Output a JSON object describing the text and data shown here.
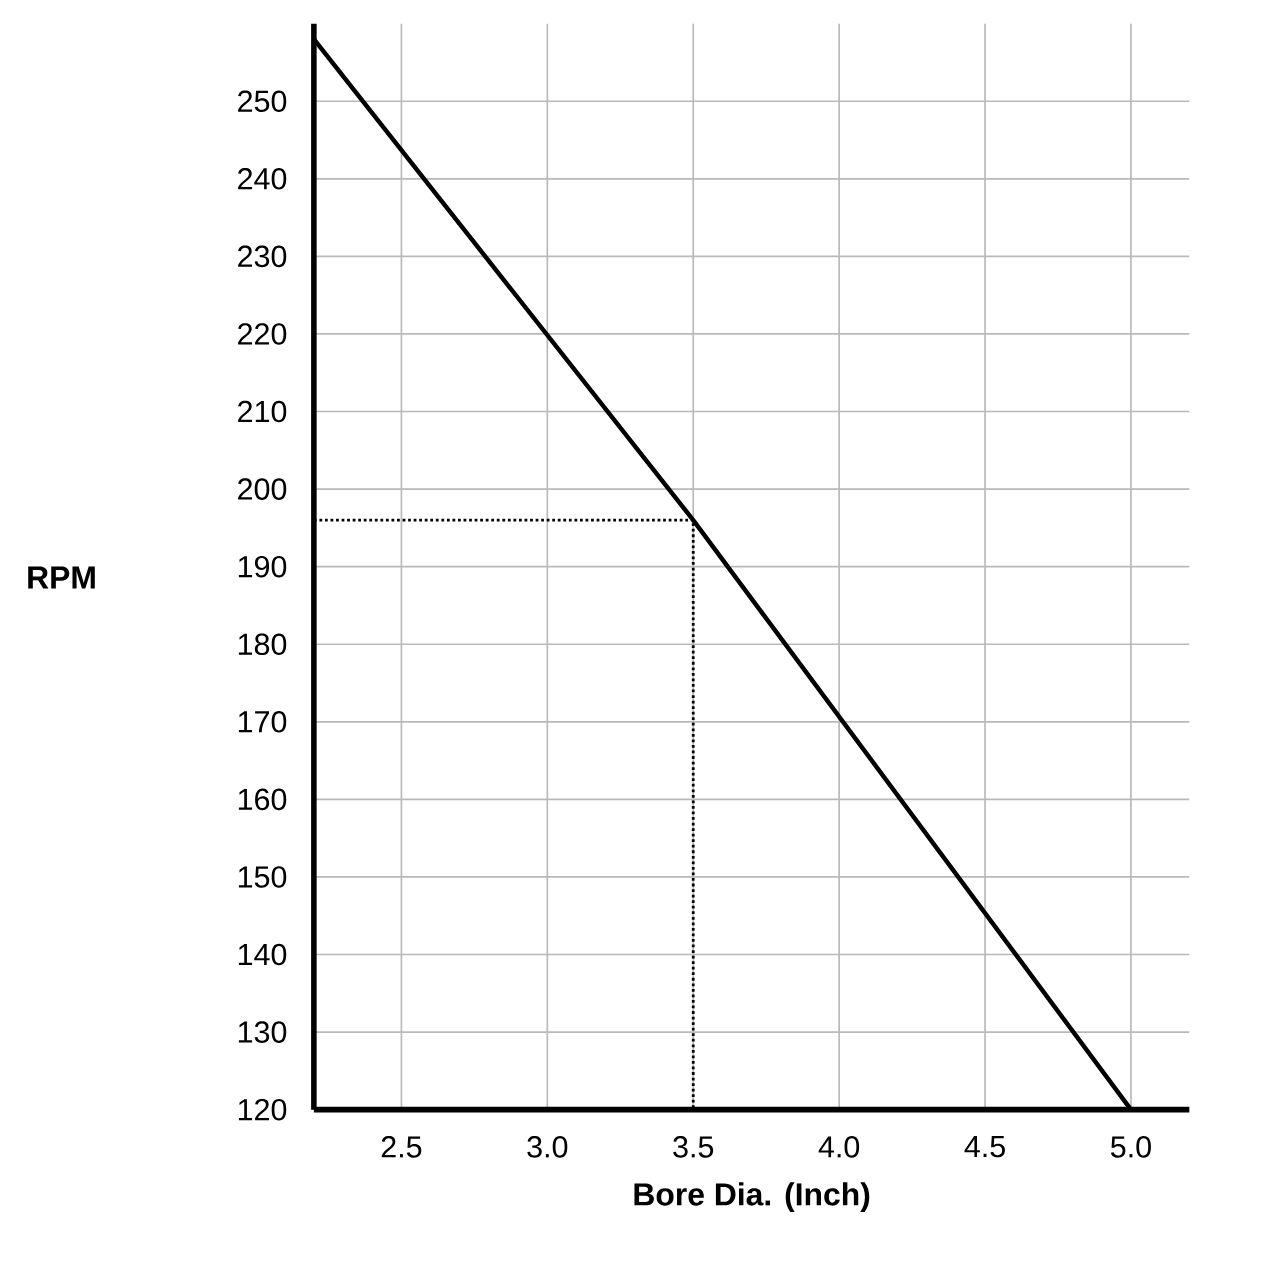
{
  "chart_data": {
    "type": "line",
    "xlabel": "Bore Dia. (Inch)",
    "ylabel": "RPM",
    "xlim": [
      2.2,
      5.2
    ],
    "xticks": [
      {
        "value": 2.5,
        "label": "2.5"
      },
      {
        "value": 3.0,
        "label": "3.0"
      },
      {
        "value": 3.5,
        "label": "3.5"
      },
      {
        "value": 4.0,
        "label": "4.0"
      },
      {
        "value": 4.5,
        "label": "4.5"
      },
      {
        "value": 5.0,
        "label": "5.0"
      }
    ],
    "ylim": [
      120,
      260
    ],
    "yticks": [
      120,
      130,
      140,
      150,
      160,
      170,
      180,
      190,
      200,
      210,
      220,
      230,
      240,
      250
    ],
    "grid": true,
    "marker": "none",
    "series": [
      {
        "color": "#000000",
        "x": [
          2.2,
          3.5,
          5.0
        ],
        "values": [
          258,
          196,
          120
        ],
        "line_style": "solid"
      },
      {
        "color": "#000000",
        "x": [
          2.2,
          3.5,
          3.5
        ],
        "values": [
          196,
          196,
          120
        ],
        "line_style": "dotted"
      }
    ]
  }
}
